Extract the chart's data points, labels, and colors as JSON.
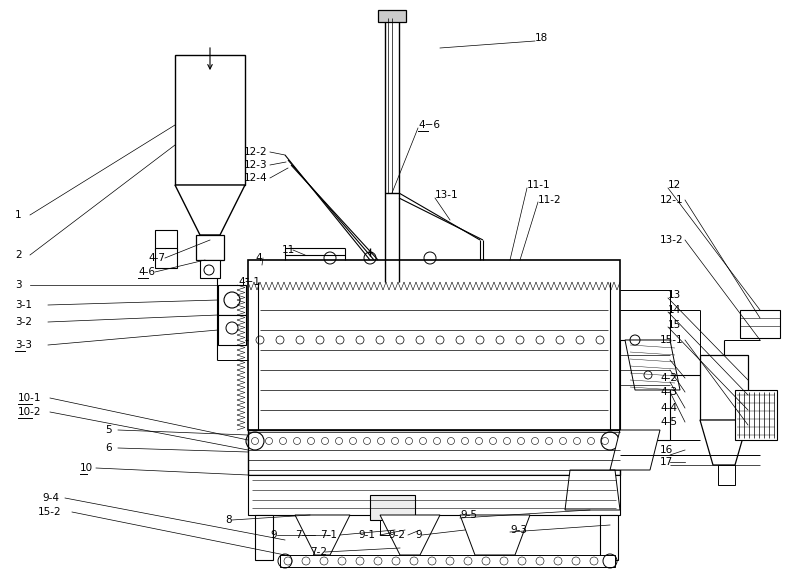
{
  "bg_color": "#ffffff",
  "lc": "#000000",
  "lw": 0.7,
  "figsize": [
    8.0,
    5.74
  ],
  "dpi": 100
}
